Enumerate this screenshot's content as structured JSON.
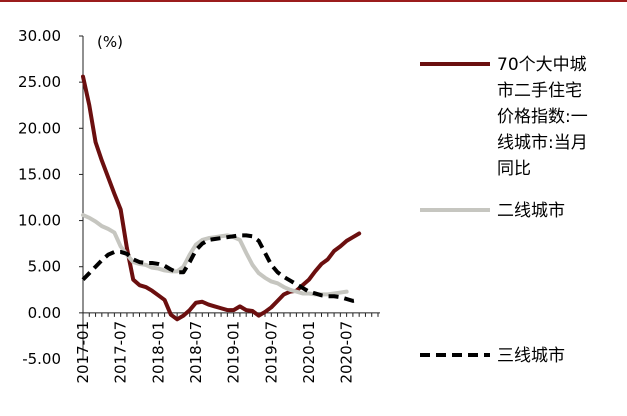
{
  "chart_data": {
    "type": "line",
    "unit_label": "(%)",
    "ylim": [
      -5,
      30
    ],
    "y_ticks": [
      "30.00",
      "25.00",
      "20.00",
      "15.00",
      "10.00",
      "5.00",
      "0.00",
      "-5.00"
    ],
    "x_ticks": [
      "2017-01",
      "2017-07",
      "2018-01",
      "2018-07",
      "2019-01",
      "2019-07",
      "2020-01",
      "2020-07"
    ],
    "x": [
      "2017-01",
      "2017-02",
      "2017-03",
      "2017-04",
      "2017-05",
      "2017-06",
      "2017-07",
      "2017-08",
      "2017-09",
      "2017-10",
      "2017-11",
      "2017-12",
      "2018-01",
      "2018-02",
      "2018-03",
      "2018-04",
      "2018-05",
      "2018-06",
      "2018-07",
      "2018-08",
      "2018-09",
      "2018-10",
      "2018-11",
      "2018-12",
      "2019-01",
      "2019-02",
      "2019-03",
      "2019-04",
      "2019-05",
      "2019-06",
      "2019-07",
      "2019-08",
      "2019-09",
      "2019-10",
      "2019-11",
      "2019-12",
      "2020-01",
      "2020-02",
      "2020-03",
      "2020-04",
      "2020-05",
      "2020-06",
      "2020-07",
      "2020-08",
      "2020-09",
      "2020-10",
      "2020-11",
      "2020-12"
    ],
    "series": [
      {
        "name": "70个大中城市二手住宅价格指数:一线城市:当月同比",
        "legend_lines": [
          "70个大中城",
          "市二手住宅",
          "价格指数:一",
          "线城市:当月",
          "同比"
        ],
        "color": "#6b0f0f",
        "dash": "solid",
        "values": [
          25.6,
          22.5,
          18.5,
          16.5,
          14.7,
          12.9,
          11.2,
          7.0,
          3.6,
          3.0,
          2.8,
          2.4,
          1.9,
          1.4,
          -0.2,
          -0.7,
          -0.3,
          0.3,
          1.1,
          1.2,
          0.9,
          0.7,
          0.5,
          0.3,
          0.3,
          0.7,
          0.3,
          0.2,
          -0.3,
          0.1,
          0.6,
          1.3,
          2.0,
          2.3,
          2.4,
          3.0,
          3.6,
          4.5,
          5.3,
          5.8,
          6.7,
          7.2,
          7.8,
          8.2,
          8.6,
          null,
          null,
          null
        ]
      },
      {
        "name": "二线城市",
        "legend_lines": [
          "二线城市"
        ],
        "color": "#c6c6c0",
        "dash": "solid",
        "values": [
          10.6,
          10.3,
          9.9,
          9.4,
          9.1,
          8.7,
          7.2,
          6.3,
          5.5,
          5.3,
          5.2,
          4.9,
          4.8,
          4.6,
          4.5,
          4.5,
          5.0,
          6.3,
          7.4,
          7.9,
          8.1,
          8.2,
          8.3,
          8.4,
          8.2,
          7.9,
          6.5,
          5.2,
          4.3,
          3.8,
          3.4,
          3.2,
          2.8,
          2.5,
          2.3,
          2.1,
          2.1,
          2.0,
          2.0,
          2.0,
          2.1,
          2.2,
          2.3,
          null,
          null,
          null,
          null,
          null
        ]
      },
      {
        "name": "三线城市",
        "legend_lines": [
          "三线城市"
        ],
        "color": "#000000",
        "dash": "dashed",
        "values": [
          3.6,
          4.3,
          5.0,
          5.7,
          6.3,
          6.6,
          6.6,
          6.4,
          5.8,
          5.5,
          5.4,
          5.4,
          5.3,
          5.1,
          4.7,
          4.4,
          4.4,
          5.5,
          6.8,
          7.5,
          7.9,
          8.0,
          8.1,
          8.2,
          8.3,
          8.4,
          8.4,
          8.3,
          7.8,
          6.5,
          5.2,
          4.4,
          3.9,
          3.5,
          3.1,
          2.7,
          2.3,
          2.1,
          1.9,
          1.8,
          1.8,
          1.7,
          1.5,
          1.3,
          1.4,
          null,
          null,
          null
        ]
      }
    ]
  }
}
